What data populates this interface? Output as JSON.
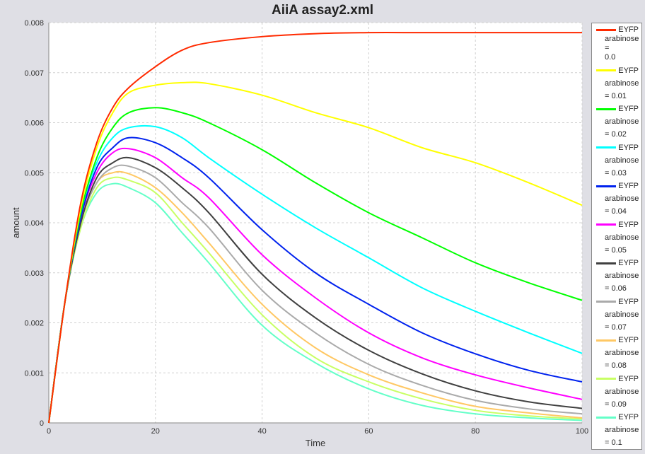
{
  "chart_data": {
    "type": "line",
    "title": "AiiA assay2.xml",
    "xlabel": "Time",
    "ylabel": "amount",
    "xlim": [
      0,
      100
    ],
    "ylim": [
      0,
      0.008
    ],
    "grid": true,
    "legend_placement": "right",
    "x_ticks": [
      "0",
      "20",
      "40",
      "60",
      "80",
      "100"
    ],
    "y_ticks": [
      "0",
      "0.001",
      "0.002",
      "0.003",
      "0.004",
      "0.005",
      "0.006",
      "0.007",
      "0.008"
    ],
    "x": [
      0,
      3,
      6,
      9,
      12,
      15,
      20,
      25,
      30,
      40,
      50,
      60,
      70,
      80,
      90,
      100
    ],
    "series": [
      {
        "name": "EYFP arabinose = 0.0",
        "line1": "EYFP",
        "line2": "arabinose",
        "line3": "=",
        "line4": "0.0",
        "color": "#ff2a00",
        "values": [
          0,
          0.0024,
          0.0044,
          0.0056,
          0.0063,
          0.0067,
          0.00712,
          0.00745,
          0.0076,
          0.00772,
          0.00778,
          0.0078,
          0.0078,
          0.0078,
          0.0078,
          0.0078
        ]
      },
      {
        "name": "EYFP arabinose = 0.01",
        "line1": "EYFP",
        "line2": "arabinose",
        "line3": "= 0.01",
        "color": "#ffff00",
        "values": [
          0,
          0.0024,
          0.0043,
          0.0055,
          0.0062,
          0.0066,
          0.00675,
          0.0068,
          0.00678,
          0.00655,
          0.0062,
          0.0059,
          0.0055,
          0.0052,
          0.0048,
          0.00435
        ]
      },
      {
        "name": "EYFP arabinose = 0.02",
        "line1": "EYFP",
        "line2": "arabinose",
        "line3": "= 0.02",
        "color": "#00ff00",
        "values": [
          0,
          0.0024,
          0.0042,
          0.0053,
          0.0059,
          0.0062,
          0.0063,
          0.0062,
          0.006,
          0.00546,
          0.0048,
          0.0042,
          0.0037,
          0.0032,
          0.0028,
          0.00245
        ]
      },
      {
        "name": "EYFP arabinose = 0.03",
        "line1": "EYFP",
        "line2": "arabinose",
        "line3": "= 0.03",
        "color": "#00ffff",
        "values": [
          0,
          0.0024,
          0.0042,
          0.0052,
          0.0057,
          0.0059,
          0.00592,
          0.0057,
          0.0053,
          0.00457,
          0.0039,
          0.0033,
          0.0027,
          0.00223,
          0.0018,
          0.00139
        ]
      },
      {
        "name": "EYFP arabinose = 0.04",
        "line1": "EYFP",
        "line2": "arabinose",
        "line3": "= 0.04",
        "color": "#0022ee",
        "values": [
          0,
          0.0024,
          0.0041,
          0.0051,
          0.0055,
          0.0057,
          0.0056,
          0.0053,
          0.0049,
          0.00386,
          0.003,
          0.00237,
          0.0018,
          0.00138,
          0.00105,
          0.00082
        ]
      },
      {
        "name": "EYFP arabinose = 0.05",
        "line1": "EYFP",
        "line2": "arabinose",
        "line3": "= 0.05",
        "color": "#ff00ff",
        "values": [
          0,
          0.0024,
          0.0041,
          0.005,
          0.0054,
          0.00548,
          0.0053,
          0.0049,
          0.0045,
          0.00336,
          0.0025,
          0.0018,
          0.0013,
          0.00096,
          0.0007,
          0.00047
        ]
      },
      {
        "name": "EYFP arabinose = 0.06",
        "line1": "EYFP",
        "line2": "arabinose",
        "line3": "= 0.06",
        "color": "#404040",
        "values": [
          0,
          0.0024,
          0.004,
          0.0049,
          0.0052,
          0.0053,
          0.0051,
          0.0047,
          0.0042,
          0.00297,
          0.0021,
          0.00145,
          0.00098,
          0.00064,
          0.00042,
          0.00029
        ]
      },
      {
        "name": "EYFP arabinose = 0.07",
        "line1": "EYFP",
        "line2": "arabinose",
        "line3": "= 0.07",
        "color": "#aaaaaa",
        "values": [
          0,
          0.0024,
          0.004,
          0.0048,
          0.0051,
          0.00513,
          0.0049,
          0.0044,
          0.0039,
          0.00265,
          0.0018,
          0.00117,
          0.00075,
          0.00045,
          0.00028,
          0.00018
        ]
      },
      {
        "name": "EYFP arabinose = 0.08",
        "line1": "EYFP",
        "line2": "arabinose",
        "line3": "= 0.08",
        "color": "#ffc864",
        "values": [
          0,
          0.0024,
          0.004,
          0.0048,
          0.005,
          0.00498,
          0.0047,
          0.0042,
          0.0036,
          0.00237,
          0.0015,
          0.00096,
          0.0006,
          0.00033,
          0.0002,
          0.0001
        ]
      },
      {
        "name": "EYFP arabinose = 0.09",
        "line1": "EYFP",
        "line2": "arabinose",
        "line3": "= 0.09",
        "color": "#c8ff64",
        "values": [
          0,
          0.0024,
          0.0039,
          0.0047,
          0.0049,
          0.00485,
          0.0046,
          0.004,
          0.0034,
          0.00216,
          0.0013,
          0.00082,
          0.00048,
          0.00025,
          0.00014,
          8e-05
        ]
      },
      {
        "name": "EYFP arabinose = 0.1",
        "line1": "EYFP",
        "line2": "arabinose",
        "line3": "= 0.1",
        "color": "#64ffc8",
        "values": [
          0,
          0.0024,
          0.0039,
          0.0046,
          0.00478,
          0.0047,
          0.0044,
          0.0038,
          0.0032,
          0.00195,
          0.0012,
          0.00068,
          0.00035,
          0.00018,
          0.0001,
          5e-05
        ]
      }
    ]
  }
}
